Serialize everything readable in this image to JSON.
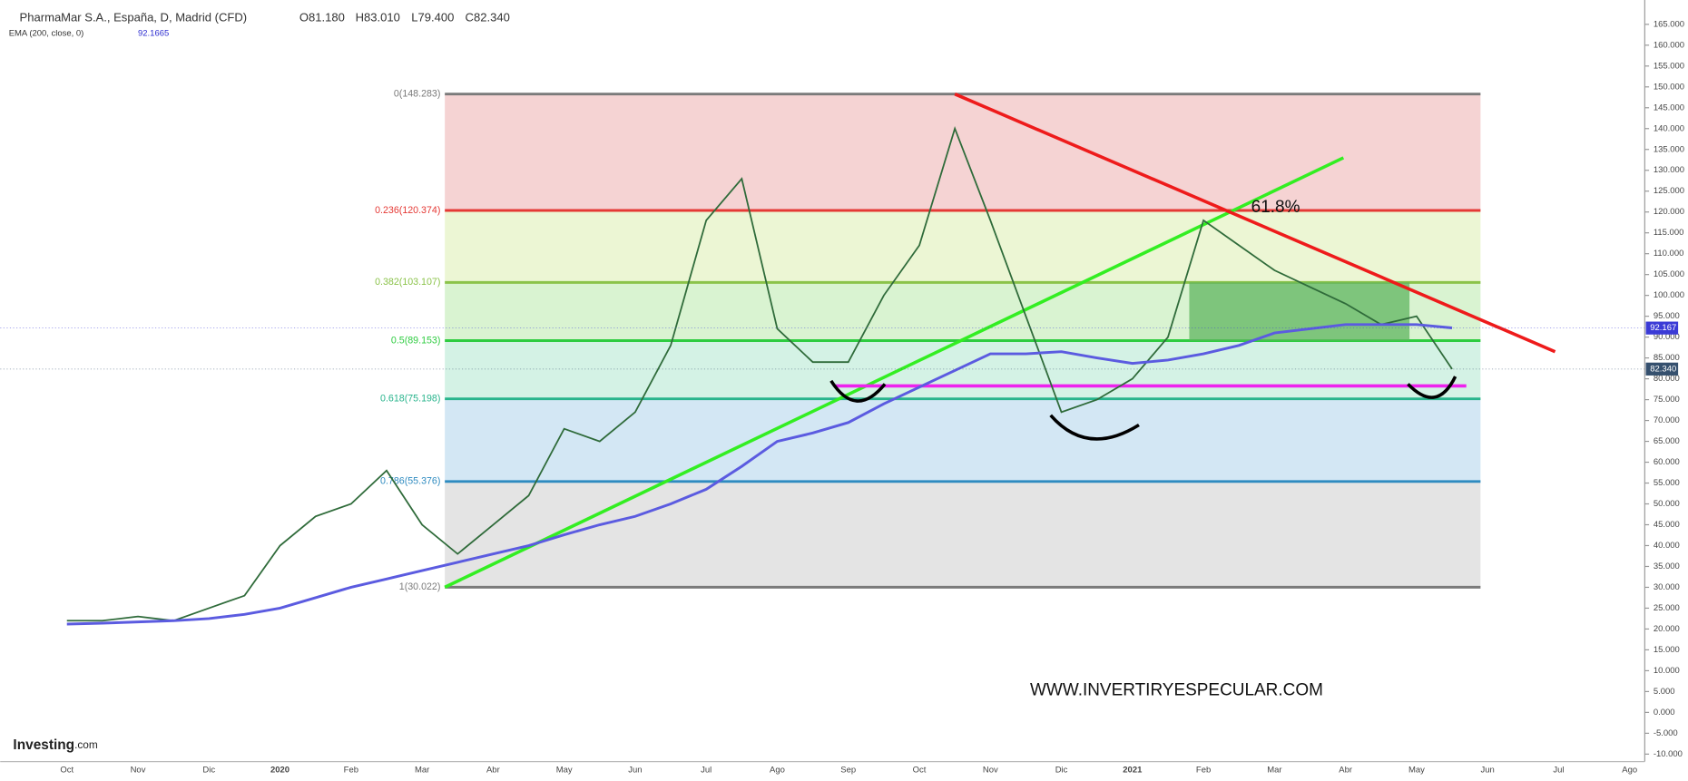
{
  "header": {
    "title": "PharmaMar S.A., España, D, Madrid (CFD)",
    "open": "O81.180",
    "high": "H83.010",
    "low": "L79.400",
    "close": "C82.340",
    "ema_value": "92.1665",
    "note": "61.8%",
    "watermark": "WWW.INVERTIRYESPECULAR.COM",
    "brand": "Investing",
    "brand_suffix": ".com"
  },
  "chart_data": {
    "type": "line",
    "categories": [
      "Oct",
      null,
      "Nov",
      null,
      "Dic",
      null,
      "2020",
      null,
      "Feb",
      null,
      "Mar",
      null,
      "Abr",
      null,
      "May",
      null,
      "Jun",
      null,
      "Jul",
      null,
      "Ago",
      null,
      "Sep",
      null,
      "Oct",
      null,
      "Nov",
      null,
      "Dic",
      null,
      "2021",
      null,
      "Feb",
      null,
      "Mar",
      null,
      "Abr",
      null,
      "May",
      null,
      "Jun",
      null,
      "Jul",
      null,
      "Ago",
      null
    ],
    "series": [
      {
        "name": "PharmaMar S.A., España, D, Madrid (CFD)",
        "color": "#2f6b3a",
        "values": [
          22,
          22,
          23,
          22,
          25,
          28,
          40,
          47,
          50,
          58,
          45,
          38,
          45,
          52,
          68,
          65,
          72,
          88,
          118,
          128,
          92,
          84,
          84,
          100,
          112,
          140,
          118,
          95,
          72,
          75,
          80,
          90,
          118,
          112,
          106,
          102,
          98,
          93,
          95,
          82.34,
          null,
          null,
          null,
          null,
          null,
          null
        ]
      },
      {
        "name": "EMA (200, close, 0)",
        "color": "#5b5be0",
        "values": [
          21.2,
          21.4,
          21.7,
          22,
          22.5,
          23.5,
          25,
          27.5,
          30,
          32,
          34,
          36,
          38,
          40,
          42.6,
          45,
          47,
          50,
          53.5,
          59,
          65,
          67,
          69.5,
          74,
          78,
          82,
          86,
          86,
          86.5,
          85,
          83.7,
          84.5,
          86,
          88,
          91,
          92,
          93,
          93,
          93,
          92.2,
          null,
          null,
          null,
          null,
          null,
          null
        ]
      }
    ],
    "ylim": [
      -12,
      168
    ],
    "yticks": [
      {
        "value": 165,
        "label": "165.000"
      },
      {
        "value": 160,
        "label": "160.000"
      },
      {
        "value": 155,
        "label": "155.000"
      },
      {
        "value": 150,
        "label": "150.000"
      },
      {
        "value": 145,
        "label": "145.000"
      },
      {
        "value": 140,
        "label": "140.000"
      },
      {
        "value": 135,
        "label": "135.000"
      },
      {
        "value": 130,
        "label": "130.000"
      },
      {
        "value": 125,
        "label": "125.000"
      },
      {
        "value": 120,
        "label": "120.000"
      },
      {
        "value": 115,
        "label": "115.000"
      },
      {
        "value": 110,
        "label": "110.000"
      },
      {
        "value": 105,
        "label": "105.000"
      },
      {
        "value": 100,
        "label": "100.000"
      },
      {
        "value": 95,
        "label": "95.000"
      },
      {
        "value": 90,
        "label": "90.000"
      },
      {
        "value": 85,
        "label": "85.000"
      },
      {
        "value": 80,
        "label": "80.000"
      },
      {
        "value": 75,
        "label": "75.000"
      },
      {
        "value": 70,
        "label": "70.000"
      },
      {
        "value": 65,
        "label": "65.000"
      },
      {
        "value": 60,
        "label": "60.000"
      },
      {
        "value": 55,
        "label": "55.000"
      },
      {
        "value": 50,
        "label": "50.000"
      },
      {
        "value": 45,
        "label": "45.000"
      },
      {
        "value": 40,
        "label": "40.000"
      },
      {
        "value": 35,
        "label": "35.000"
      },
      {
        "value": 30,
        "label": "30.000"
      },
      {
        "value": 25,
        "label": "25.000"
      },
      {
        "value": 20,
        "label": "20.000"
      },
      {
        "value": 15,
        "label": "15.000"
      },
      {
        "value": 10,
        "label": "10.000"
      },
      {
        "value": 5,
        "label": "5.000"
      },
      {
        "value": 0,
        "label": "0.000"
      },
      {
        "value": -5,
        "label": "-5.000"
      },
      {
        "value": -10,
        "label": "-10.000"
      }
    ],
    "grid": false,
    "price_tags": [
      {
        "value": 92.167,
        "label": "92.167",
        "color": "#3b3bd6"
      },
      {
        "value": 82.34,
        "label": "82.340",
        "color": "#35506e"
      }
    ],
    "fibonacci": {
      "from": 10.64,
      "to": 39.8,
      "levels": [
        {
          "value": 148.283,
          "label": "0(148.283)",
          "color": "#7a7a7a",
          "band": "#f5d3d3"
        },
        {
          "value": 120.374,
          "label": "0.236(120.374)",
          "color": "#e53935",
          "band": "#ecf6d4"
        },
        {
          "value": 103.107,
          "label": "0.382(103.107)",
          "color": "#8bc34a",
          "band": "#d9f3d1"
        },
        {
          "value": 89.153,
          "label": "0.5(89.153)",
          "color": "#2ecc40",
          "band": "#d4f2e5"
        },
        {
          "value": 75.198,
          "label": "0.618(75.198)",
          "color": "#28b48c",
          "band": "#d3e7f4"
        },
        {
          "value": 55.376,
          "label": "0.786(55.376)",
          "color": "#2e8bc0",
          "band": "#e4e4e4"
        },
        {
          "value": 30.022,
          "label": "1(30.022)",
          "color": "#7a7a7a",
          "band": null
        }
      ]
    },
    "trendlines": [
      {
        "color": "#33ee22",
        "points": [
          [
            10.64,
            30.022
          ],
          [
            35.94,
            133
          ]
        ]
      },
      {
        "color": "#ee1b1b",
        "points": [
          [
            25.0,
            148.283
          ],
          [
            41.9,
            86.5
          ]
        ]
      },
      {
        "color": "#ee22ee",
        "points": [
          [
            21.6,
            78.3
          ],
          [
            39.4,
            78.3
          ]
        ]
      }
    ],
    "box": {
      "color": "#5fb65f",
      "x": [
        31.6,
        37.8
      ],
      "y": [
        89.153,
        103.107
      ]
    }
  }
}
